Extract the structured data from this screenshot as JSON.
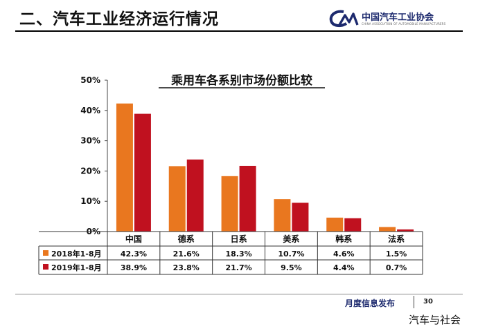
{
  "header": {
    "title": "二、汽车工业经济运行情况"
  },
  "logo": {
    "name": "中国汽车工业协会",
    "subtitle": "CHINA ASSOCIATION OF AUTOMOBILE MANUFACTURERS"
  },
  "footer": {
    "text": "月度信息发布",
    "page": "30"
  },
  "watermark": "汽车与社会",
  "colors": {
    "series_2018": "#e9771f",
    "series_2019": "#c0111f"
  },
  "chart_data": {
    "type": "bar",
    "title": "乘用车各系别市场份额比较",
    "categories": [
      "中国",
      "德系",
      "日系",
      "美系",
      "韩系",
      "法系"
    ],
    "series": [
      {
        "name": "2018年1-8月",
        "values": [
          42.3,
          21.6,
          18.3,
          10.7,
          4.6,
          1.5
        ],
        "labels": [
          "42.3%",
          "21.6%",
          "18.3%",
          "10.7%",
          "4.6%",
          "1.5%"
        ]
      },
      {
        "name": "2019年1-8月",
        "values": [
          38.9,
          23.8,
          21.7,
          9.5,
          4.4,
          0.7
        ],
        "labels": [
          "38.9%",
          "23.8%",
          "21.7%",
          "9.5%",
          "4.4%",
          "0.7%"
        ]
      }
    ],
    "ylim": [
      0,
      50
    ],
    "yticks": [
      "0%",
      "10%",
      "20%",
      "30%",
      "40%",
      "50%"
    ],
    "xlabel": "",
    "ylabel": "",
    "legend": "data-table",
    "grid": false
  }
}
